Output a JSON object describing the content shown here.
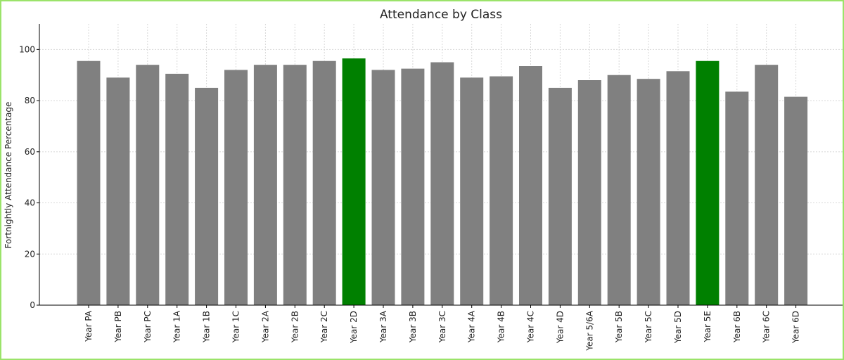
{
  "chart_data": {
    "type": "bar",
    "title": "Attendance by Class",
    "xlabel": "",
    "ylabel": "Fortnightly Attendance Percentage",
    "ylim": [
      0,
      110
    ],
    "yticks": [
      0,
      20,
      40,
      60,
      80,
      100
    ],
    "grid": true,
    "categories": [
      "Year PA",
      "Year PB",
      "Year PC",
      "Year 1A",
      "Year 1B",
      "Year 1C",
      "Year 2A",
      "Year 2B",
      "Year 2C",
      "Year 2D",
      "Year 3A",
      "Year 3B",
      "Year 3C",
      "Year 4A",
      "Year 4B",
      "Year 4C",
      "Year 4D",
      "Year 5/6A",
      "Year 5B",
      "Year 5C",
      "Year 5D",
      "Year 5E",
      "Year 6B",
      "Year 6C",
      "Year 6D"
    ],
    "values": [
      95.5,
      89,
      94,
      90.5,
      85,
      92,
      94,
      94,
      95.5,
      96.5,
      92,
      92.5,
      95,
      89,
      89.5,
      93.5,
      85,
      88,
      90,
      88.5,
      91.5,
      95.5,
      83.5,
      94,
      81.5
    ],
    "highlighted": [
      "Year 2D",
      "Year 5E"
    ],
    "colors": {
      "default_bar": "#808080",
      "highlight_bar": "#008000",
      "frame_border": "#9be36a"
    }
  }
}
